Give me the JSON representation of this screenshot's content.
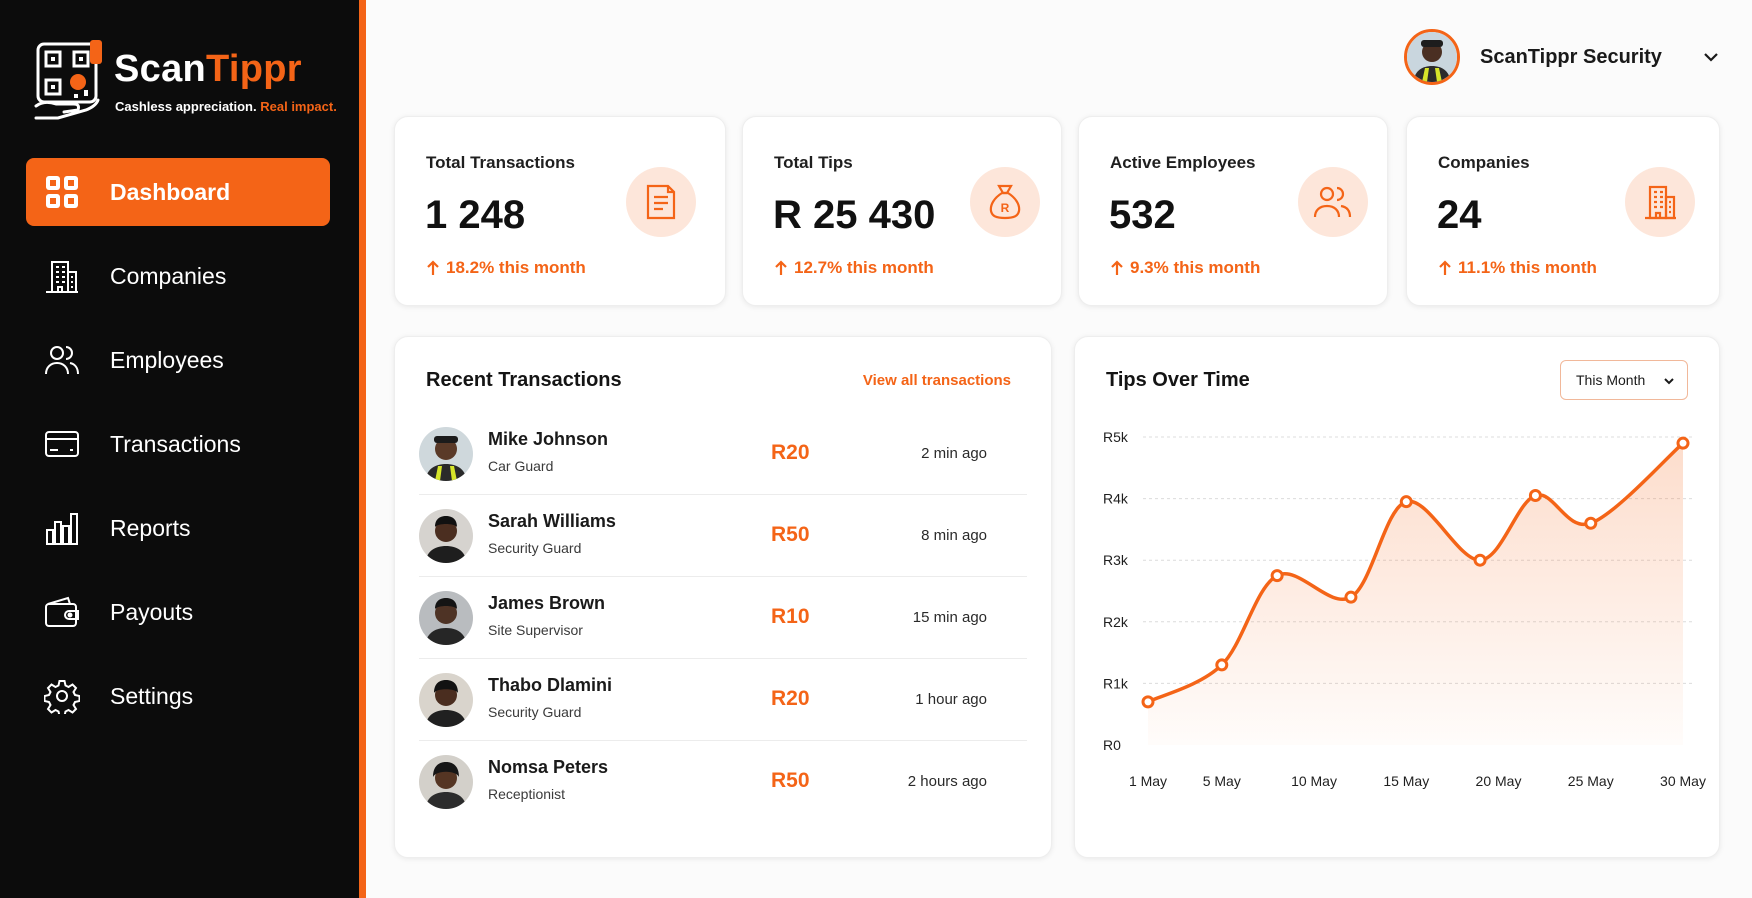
{
  "brand": {
    "name_part1": "Scan",
    "name_part2": "Tippr",
    "tagline_part1": "Cashless appreciation.",
    "tagline_part2": "Real impact.",
    "accent": "#f46417"
  },
  "nav": [
    {
      "label": "Dashboard",
      "icon": "dashboard-icon",
      "active": true
    },
    {
      "label": "Companies",
      "icon": "building-icon",
      "active": false
    },
    {
      "label": "Employees",
      "icon": "users-icon",
      "active": false
    },
    {
      "label": "Transactions",
      "icon": "card-icon",
      "active": false
    },
    {
      "label": "Reports",
      "icon": "bar-chart-icon",
      "active": false
    },
    {
      "label": "Payouts",
      "icon": "wallet-icon",
      "active": false
    },
    {
      "label": "Settings",
      "icon": "gear-icon",
      "active": false
    }
  ],
  "user": {
    "name": "ScanTippr Security"
  },
  "stats": [
    {
      "label": "Total Transactions",
      "value": "1 248",
      "change": "18.2% this month",
      "icon": "document-icon"
    },
    {
      "label": "Total Tips",
      "value": "R 25 430",
      "change": "12.7% this month",
      "icon": "money-bag-icon"
    },
    {
      "label": "Active Employees",
      "value": "532",
      "change": "9.3% this month",
      "icon": "users-icon"
    },
    {
      "label": "Companies",
      "value": "24",
      "change": "11.1% this month",
      "icon": "building-icon"
    }
  ],
  "recent": {
    "title": "Recent Transactions",
    "view_all": "View all transactions",
    "rows": [
      {
        "name": "Mike Johnson",
        "role": "Car Guard",
        "amount": "R20",
        "time": "2 min ago"
      },
      {
        "name": "Sarah Williams",
        "role": "Security Guard",
        "amount": "R50",
        "time": "8 min ago"
      },
      {
        "name": "James Brown",
        "role": "Site Supervisor",
        "amount": "R10",
        "time": "15 min ago"
      },
      {
        "name": "Thabo Dlamini",
        "role": "Security Guard",
        "amount": "R20",
        "time": "1 hour ago"
      },
      {
        "name": "Nomsa Peters",
        "role": "Receptionist",
        "amount": "R50",
        "time": "2 hours ago"
      }
    ]
  },
  "tips": {
    "title": "Tips Over Time",
    "range": "This Month"
  },
  "chart_data": {
    "type": "area",
    "title": "Tips Over Time",
    "x_ticks": [
      "1 May",
      "5 May",
      "10 May",
      "15 May",
      "20 May",
      "25 May",
      "30 May"
    ],
    "y_ticks": [
      "R0",
      "R1k",
      "R2k",
      "R3k",
      "R4k",
      "R5k"
    ],
    "ylim": [
      0,
      5000
    ],
    "x": [
      1,
      5,
      8,
      12,
      15,
      19,
      22,
      25,
      30
    ],
    "values": [
      700,
      1300,
      2750,
      2400,
      3950,
      3000,
      4050,
      3600,
      4900
    ],
    "grid": true,
    "legend": "none",
    "color": "#f46417"
  }
}
